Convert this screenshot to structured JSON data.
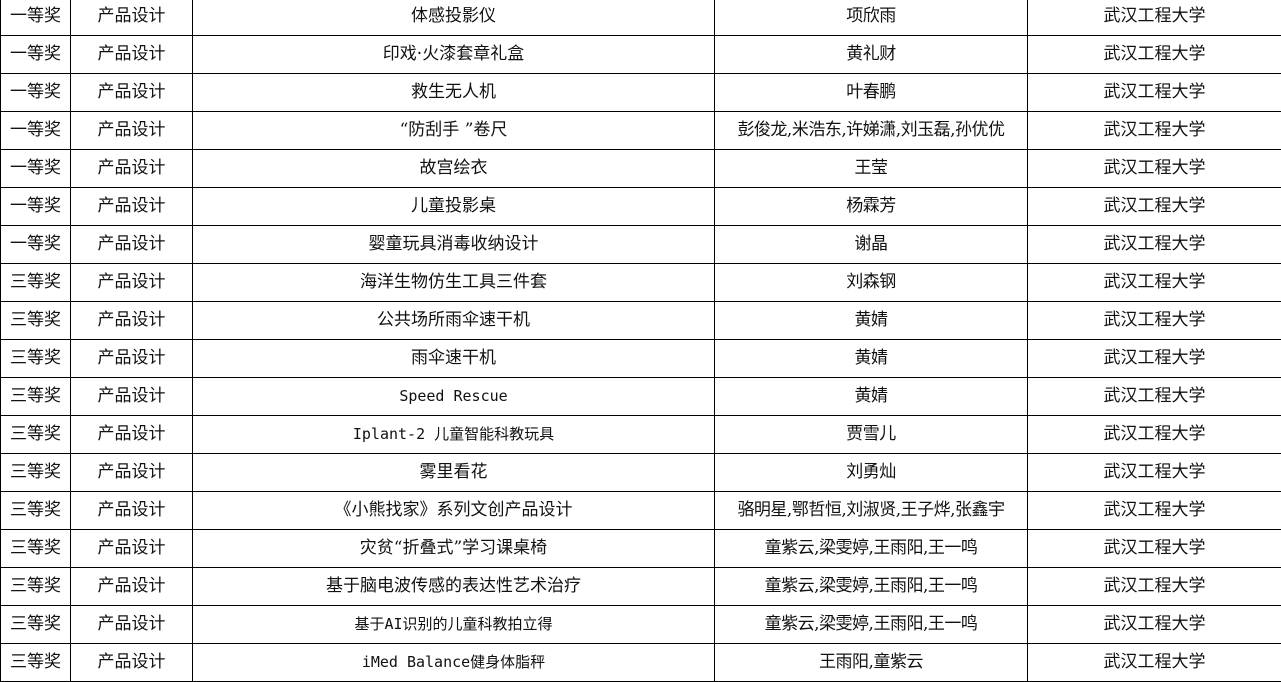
{
  "table": {
    "rows": [
      [
        "一等奖",
        "产品设计",
        "体感投影仪",
        "项欣雨",
        "武汉工程大学"
      ],
      [
        "一等奖",
        "产品设计",
        "印戏·火漆套章礼盒",
        "黄礼财",
        "武汉工程大学"
      ],
      [
        "一等奖",
        "产品设计",
        "救生无人机",
        "叶春鹏",
        "武汉工程大学"
      ],
      [
        "一等奖",
        "产品设计",
        "“防刮手 ”卷尺",
        "彭俊龙,米浩东,许娣潇,刘玉磊,孙优优",
        "武汉工程大学"
      ],
      [
        "一等奖",
        "产品设计",
        "故宫绘衣",
        "王莹",
        "武汉工程大学"
      ],
      [
        "一等奖",
        "产品设计",
        "儿童投影桌",
        "杨霖芳",
        "武汉工程大学"
      ],
      [
        "一等奖",
        "产品设计",
        "婴童玩具消毒收纳设计",
        "谢晶",
        "武汉工程大学"
      ],
      [
        "三等奖",
        "产品设计",
        "海洋生物仿生工具三件套",
        "刘森钢",
        "武汉工程大学"
      ],
      [
        "三等奖",
        "产品设计",
        "公共场所雨伞速干机",
        "黄婧",
        "武汉工程大学"
      ],
      [
        "三等奖",
        "产品设计",
        "雨伞速干机",
        "黄婧",
        "武汉工程大学"
      ],
      [
        "三等奖",
        "产品设计",
        "Speed Rescue",
        "黄婧",
        "武汉工程大学"
      ],
      [
        "三等奖",
        "产品设计",
        "Iplant-2 儿童智能科教玩具",
        "贾雪儿",
        "武汉工程大学"
      ],
      [
        "三等奖",
        "产品设计",
        "雾里看花",
        "刘勇灿",
        "武汉工程大学"
      ],
      [
        "三等奖",
        "产品设计",
        "《小熊找家》系列文创产品设计",
        "骆明星,鄂哲恒,刘淑贤,王子烨,张鑫宇",
        "武汉工程大学"
      ],
      [
        "三等奖",
        "产品设计",
        "灾贫“折叠式”学习课桌椅",
        "童紫云,梁雯婷,王雨阳,王一鸣",
        "武汉工程大学"
      ],
      [
        "三等奖",
        "产品设计",
        "基于脑电波传感的表达性艺术治疗",
        "童紫云,梁雯婷,王雨阳,王一鸣",
        "武汉工程大学"
      ],
      [
        "三等奖",
        "产品设计",
        "基于AI识别的儿童科教拍立得",
        "童紫云,梁雯婷,王雨阳,王一鸣",
        "武汉工程大学"
      ],
      [
        "三等奖",
        "产品设计",
        "iMed Balance健身体脂秤",
        "王雨阳,童紫云",
        "武汉工程大学"
      ]
    ]
  }
}
